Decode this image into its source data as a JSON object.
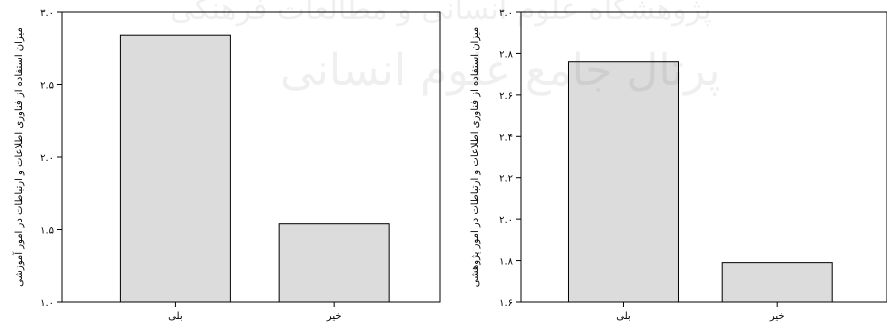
{
  "watermark": {
    "line1": "پژوهشگاه علوم انسانی و مطالعات فرهنگی",
    "line2": "پرتال جامع علوم انسانی"
  },
  "chart_data": [
    {
      "type": "bar",
      "title": "",
      "xlabel": "",
      "ylabel": "میزان استفاده از فناوری اطلاعات و ارتباطات در امور آموزشی",
      "categories": [
        "بلی",
        "خیر"
      ],
      "values": [
        2.84,
        1.54
      ],
      "ylim": [
        1.0,
        3.0
      ],
      "yticks": [
        1.0,
        1.5,
        2.0,
        2.5,
        3.0
      ],
      "ytick_labels": [
        "۱.۰",
        "۱.۵",
        "۲.۰",
        "۲.۵",
        "۳.۰"
      ],
      "grid": false,
      "legend": "none",
      "bar_color": "#dcdcdc",
      "edge_color": "#000000"
    },
    {
      "type": "bar",
      "title": "",
      "xlabel": "",
      "ylabel": "میزان استفاده از فناوری اطلاعات و ارتباطات در امور پژوهشی",
      "categories": [
        "بلی",
        "خیر"
      ],
      "values": [
        2.76,
        1.79
      ],
      "ylim": [
        1.6,
        3.0
      ],
      "yticks": [
        1.6,
        1.8,
        2.0,
        2.2,
        2.4,
        2.6,
        2.8,
        3.0
      ],
      "ytick_labels": [
        "۱.۶",
        "۱.۸",
        "۲.۰",
        "۲.۲",
        "۲.۴",
        "۲.۶",
        "۲.۸",
        "۳.۰"
      ],
      "grid": false,
      "legend": "none",
      "bar_color": "#dcdcdc",
      "edge_color": "#000000"
    }
  ]
}
